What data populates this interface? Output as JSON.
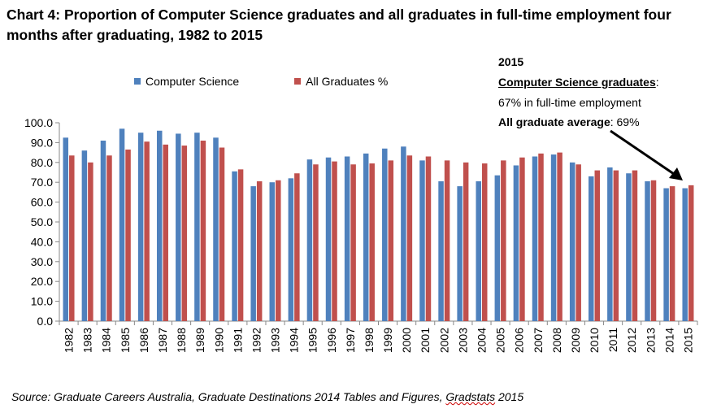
{
  "title": "Chart 4: Proportion of Computer Science graduates and all graduates in full-time employment four months after graduating, 1982 to 2015",
  "annotation": {
    "year": "2015",
    "cs_label": "Computer Science graduates",
    "cs_colon": ":",
    "cs_value": "67% in full-time employment",
    "all_label": "All graduate average",
    "all_value": ": 69%"
  },
  "source": {
    "text": "Source: Graduate Careers Australia, Graduate Destinations 2014 Tables and Figures, ",
    "misspelled": "Gradstats",
    "tail": " 2015"
  },
  "colors": {
    "computer_science": "#4f81bd",
    "all_graduates": "#c0504d"
  },
  "chart_data": {
    "type": "bar",
    "ylim": [
      0,
      100
    ],
    "ytick_labels": [
      "0.0",
      "10.0",
      "20.0",
      "30.0",
      "40.0",
      "50.0",
      "60.0",
      "70.0",
      "80.0",
      "90.0",
      "100.0"
    ],
    "legend_position": "top",
    "categories": [
      "1982",
      "1983",
      "1984",
      "1985",
      "1986",
      "1987",
      "1988",
      "1989",
      "1990",
      "1991",
      "1992",
      "1993",
      "1994",
      "1995",
      "1996",
      "1997",
      "1998",
      "1999",
      "2000",
      "2001",
      "2002",
      "2003",
      "2004",
      "2005",
      "2006",
      "2007",
      "2008",
      "2009",
      "2010",
      "2011",
      "2012",
      "2013",
      "2014",
      "2015"
    ],
    "series": [
      {
        "name": "Computer Science",
        "values": [
          92.5,
          86.0,
          91.0,
          97.0,
          95.0,
          96.0,
          94.5,
          95.0,
          92.5,
          75.5,
          68.0,
          70.0,
          72.0,
          81.5,
          82.5,
          83.0,
          84.5,
          87.0,
          88.0,
          81.0,
          70.5,
          68.0,
          70.5,
          73.5,
          78.5,
          83.0,
          84.0,
          80.0,
          73.0,
          77.5,
          74.5,
          70.5,
          67.0,
          67.0
        ]
      },
      {
        "name": "All Graduates %",
        "values": [
          83.5,
          80.0,
          83.5,
          86.5,
          90.5,
          89.0,
          88.5,
          91.0,
          87.5,
          76.5,
          70.5,
          71.0,
          74.5,
          79.0,
          80.5,
          79.0,
          79.5,
          81.0,
          83.5,
          83.0,
          81.0,
          80.0,
          79.5,
          81.0,
          82.5,
          84.5,
          85.0,
          79.0,
          76.0,
          76.0,
          76.0,
          71.0,
          68.0,
          68.5
        ]
      }
    ]
  }
}
